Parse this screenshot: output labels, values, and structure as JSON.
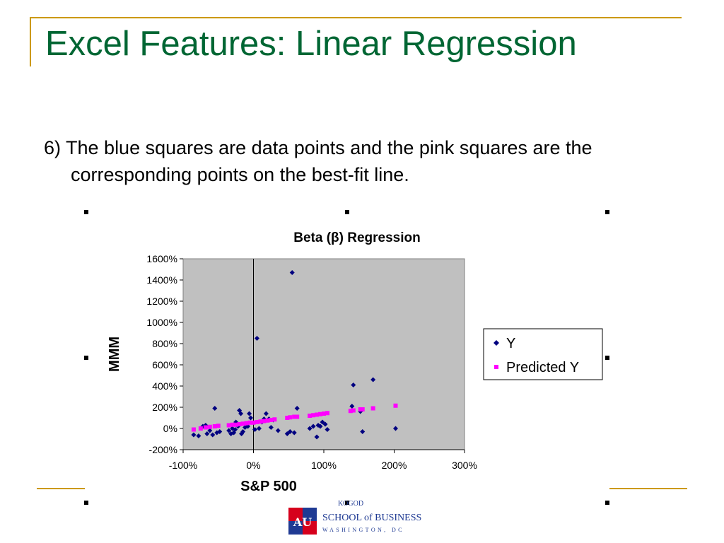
{
  "slide": {
    "title": "Excel Features: Linear Regression",
    "bullet": "6) The blue squares are data points and the pink squares are the corresponding points on the best-fit line.",
    "colors": {
      "title": "#006633",
      "accent": "#CC9900",
      "plot_area": "#C0C0C0",
      "actual": "#000080",
      "predicted": "#FF00FF"
    }
  },
  "logo": {
    "line1": "KOGOD",
    "line2": "SCHOOL of BUSINESS",
    "line3": "WASHINGTON, DC",
    "mark_text": "AU"
  },
  "chart_data": {
    "type": "scatter",
    "title": "Beta (β) Regression",
    "xlabel": "S&P 500",
    "ylabel": "MMM",
    "xlim": [
      -1.0,
      3.0
    ],
    "ylim": [
      -2.0,
      16.0
    ],
    "xticks": [
      -1.0,
      0.0,
      1.0,
      2.0,
      3.0
    ],
    "xtick_labels": [
      "-100%",
      "0%",
      "100%",
      "200%",
      "300%"
    ],
    "yticks": [
      -2.0,
      0.0,
      2.0,
      4.0,
      6.0,
      8.0,
      10.0,
      12.0,
      14.0,
      16.0
    ],
    "ytick_labels": [
      "-200%",
      "0%",
      "200%",
      "400%",
      "600%",
      "800%",
      "1000%",
      "1200%",
      "1400%",
      "1600%"
    ],
    "grid": false,
    "legend_position": "right",
    "series": [
      {
        "name": "Y",
        "marker": "diamond",
        "color": "#000080",
        "points": [
          [
            -0.85,
            -0.6
          ],
          [
            -0.78,
            -0.7
          ],
          [
            -0.72,
            0.2
          ],
          [
            -0.68,
            0.3
          ],
          [
            -0.66,
            -0.5
          ],
          [
            -0.62,
            -0.2
          ],
          [
            -0.58,
            -0.6
          ],
          [
            -0.55,
            1.9
          ],
          [
            -0.52,
            -0.4
          ],
          [
            -0.48,
            -0.3
          ],
          [
            -0.35,
            -0.2
          ],
          [
            -0.32,
            -0.5
          ],
          [
            -0.3,
            0.0
          ],
          [
            -0.28,
            -0.4
          ],
          [
            -0.26,
            -0.1
          ],
          [
            -0.25,
            0.6
          ],
          [
            -0.22,
            0.2
          ],
          [
            -0.2,
            1.7
          ],
          [
            -0.18,
            1.4
          ],
          [
            -0.17,
            -0.5
          ],
          [
            -0.15,
            -0.3
          ],
          [
            -0.12,
            0.1
          ],
          [
            -0.08,
            0.2
          ],
          [
            -0.06,
            1.4
          ],
          [
            -0.04,
            1.0
          ],
          [
            0.02,
            -0.1
          ],
          [
            0.05,
            8.5
          ],
          [
            0.08,
            0.0
          ],
          [
            0.12,
            0.6
          ],
          [
            0.15,
            0.9
          ],
          [
            0.18,
            1.4
          ],
          [
            0.22,
            0.9
          ],
          [
            0.25,
            0.1
          ],
          [
            0.28,
            0.8
          ],
          [
            0.35,
            -0.2
          ],
          [
            0.48,
            -0.5
          ],
          [
            0.52,
            -0.3
          ],
          [
            0.55,
            14.7
          ],
          [
            0.58,
            -0.4
          ],
          [
            0.62,
            1.9
          ],
          [
            0.8,
            0.0
          ],
          [
            0.85,
            0.2
          ],
          [
            0.9,
            -0.8
          ],
          [
            0.92,
            0.3
          ],
          [
            0.95,
            0.2
          ],
          [
            0.98,
            0.6
          ],
          [
            1.02,
            0.4
          ],
          [
            1.05,
            -0.1
          ],
          [
            1.4,
            2.1
          ],
          [
            1.42,
            4.1
          ],
          [
            1.52,
            1.6
          ],
          [
            1.55,
            -0.3
          ],
          [
            1.7,
            4.6
          ],
          [
            2.02,
            0.0
          ]
        ]
      },
      {
        "name": "Predicted Y",
        "marker": "square",
        "color": "#FF00FF",
        "points": [
          [
            -0.85,
            -0.1
          ],
          [
            -0.75,
            0.0
          ],
          [
            -0.68,
            0.1
          ],
          [
            -0.62,
            0.15
          ],
          [
            -0.55,
            0.2
          ],
          [
            -0.5,
            0.25
          ],
          [
            -0.35,
            0.3
          ],
          [
            -0.3,
            0.35
          ],
          [
            -0.25,
            0.35
          ],
          [
            -0.2,
            0.4
          ],
          [
            -0.15,
            0.45
          ],
          [
            -0.1,
            0.5
          ],
          [
            -0.05,
            0.55
          ],
          [
            0.0,
            0.55
          ],
          [
            0.05,
            0.6
          ],
          [
            0.1,
            0.65
          ],
          [
            0.15,
            0.7
          ],
          [
            0.2,
            0.75
          ],
          [
            0.25,
            0.8
          ],
          [
            0.3,
            0.85
          ],
          [
            0.48,
            1.0
          ],
          [
            0.52,
            1.05
          ],
          [
            0.58,
            1.1
          ],
          [
            0.62,
            1.1
          ],
          [
            0.8,
            1.2
          ],
          [
            0.85,
            1.25
          ],
          [
            0.9,
            1.3
          ],
          [
            0.95,
            1.35
          ],
          [
            1.0,
            1.4
          ],
          [
            1.05,
            1.45
          ],
          [
            1.38,
            1.65
          ],
          [
            1.42,
            1.7
          ],
          [
            1.52,
            1.8
          ],
          [
            1.55,
            1.8
          ],
          [
            1.7,
            1.9
          ],
          [
            2.02,
            2.15
          ]
        ]
      }
    ]
  }
}
